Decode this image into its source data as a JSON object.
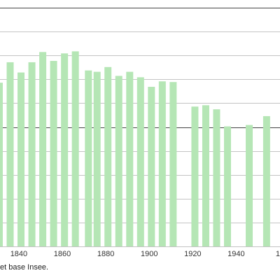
{
  "chart_data": {
    "type": "bar",
    "title": "",
    "xlabel": "",
    "ylabel": "",
    "x_ticks": [
      "1840",
      "1860",
      "1880",
      "1900",
      "1920",
      "1940",
      "1"
    ],
    "x_range": [
      1831,
      1958
    ],
    "y_range": [
      0,
      35
    ],
    "grid_lines": [
      3.5,
      7,
      10.5,
      14,
      17.5,
      21,
      24.5,
      28,
      31.5,
      35
    ],
    "grid_major": [
      17.5,
      35
    ],
    "grid": true,
    "bar_color": "#b5e6b5",
    "series": [
      {
        "x": [
          1831,
          1836,
          1841,
          1846,
          1851,
          1856,
          1861,
          1866,
          1872,
          1876,
          1881,
          1886,
          1891,
          1896,
          1901,
          1906,
          1911,
          1921,
          1926,
          1931,
          1936,
          1946,
          1954
        ],
        "values": [
          24,
          27,
          25.5,
          27,
          28.5,
          27.2,
          28.3,
          28.6,
          25.8,
          25.6,
          26.3,
          25,
          25.6,
          24.8,
          23.4,
          24.2,
          24.1,
          20.5,
          20.7,
          20.1,
          17.6,
          17.8,
          19.1
        ]
      }
    ]
  },
  "source_note": "et base Insee."
}
